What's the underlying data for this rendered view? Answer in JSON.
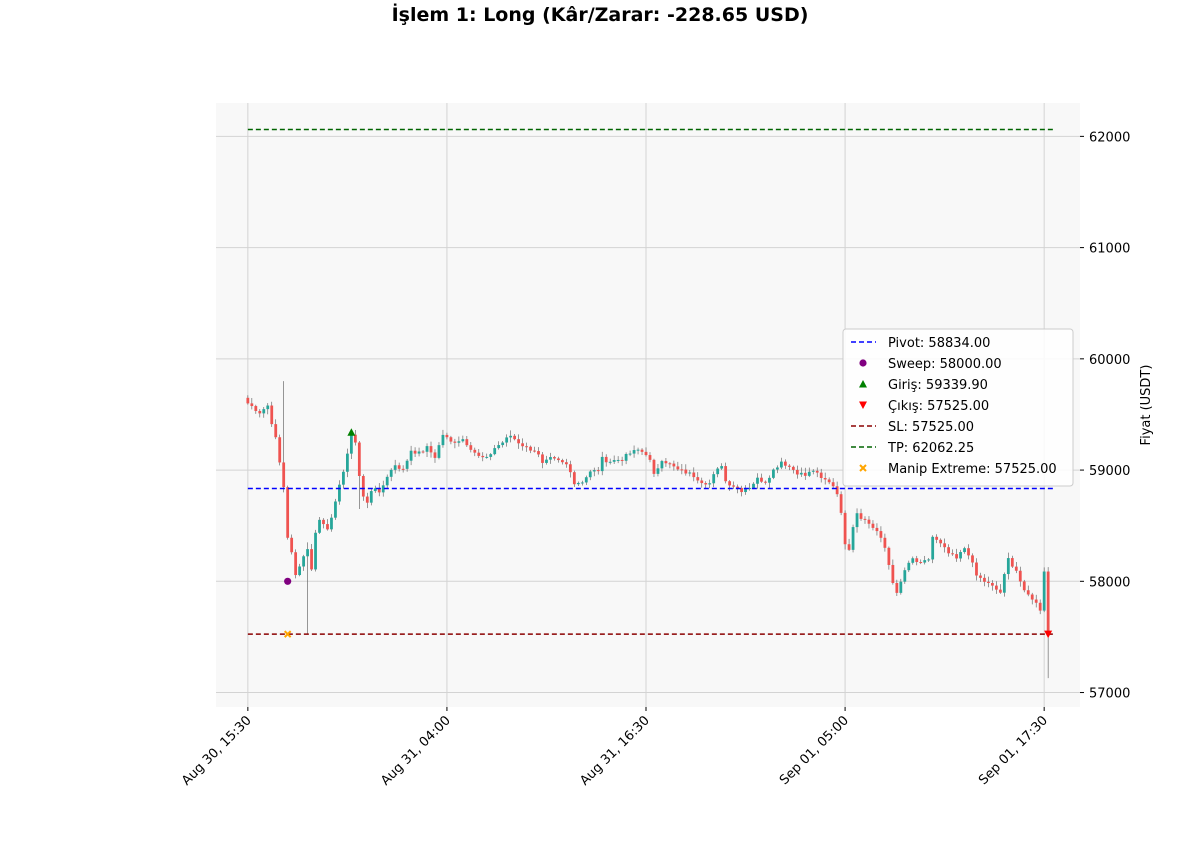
{
  "chart_data": {
    "type": "candlestick",
    "title": "İşlem 1: Long (Kâr/Zarar: -228.65 USD)",
    "ylabel": "Fiyat (USDT)",
    "xlabel": "",
    "ylim": [
      56870,
      62300
    ],
    "yticks": [
      57000,
      58000,
      59000,
      60000,
      61000,
      62000
    ],
    "ytick_labels": [
      "57000",
      "58000",
      "59000",
      "60000",
      "61000",
      "62000"
    ],
    "x_start": "2024-08-30 15:30",
    "x_end": "2024-09-01 17:45",
    "xlim": [
      "2024-08-30 13:30",
      "2024-09-01 19:45"
    ],
    "candle_minutes": 15,
    "xtick_labels": [
      "Aug 30, 15:30",
      "Aug 31, 04:00",
      "Aug 31, 16:30",
      "Sep 01, 05:00",
      "Sep 01, 17:30"
    ],
    "xticks": [
      "2024-08-30 15:30",
      "2024-08-31 04:00",
      "2024-08-31 16:30",
      "2024-09-01 05:00",
      "2024-09-01 17:30"
    ],
    "grid": true,
    "legend_position": "center-right",
    "price_path": [
      [
        0,
        59600
      ],
      [
        3,
        59520
      ],
      [
        5,
        59580
      ],
      [
        7,
        59280
      ],
      [
        9,
        58850
      ],
      [
        10,
        58400
      ],
      [
        11,
        58250
      ],
      [
        12,
        58050
      ],
      [
        13,
        58150
      ],
      [
        15,
        58300
      ],
      [
        16,
        58100
      ],
      [
        17,
        58450
      ],
      [
        18,
        58550
      ],
      [
        20,
        58480
      ],
      [
        22,
        58700
      ],
      [
        24,
        59000
      ],
      [
        26,
        59300
      ],
      [
        27,
        59260
      ],
      [
        28,
        58950
      ],
      [
        29,
        58760
      ],
      [
        30,
        58700
      ],
      [
        31,
        58820
      ],
      [
        32,
        58850
      ],
      [
        33,
        58780
      ],
      [
        35,
        58950
      ],
      [
        37,
        59050
      ],
      [
        39,
        59000
      ],
      [
        41,
        59180
      ],
      [
        43,
        59150
      ],
      [
        45,
        59200
      ],
      [
        47,
        59120
      ],
      [
        49,
        59320
      ],
      [
        51,
        59250
      ],
      [
        54,
        59280
      ],
      [
        56,
        59200
      ],
      [
        58,
        59120
      ],
      [
        60,
        59100
      ],
      [
        62,
        59200
      ],
      [
        64,
        59250
      ],
      [
        66,
        59310
      ],
      [
        68,
        59250
      ],
      [
        70,
        59200
      ],
      [
        72,
        59180
      ],
      [
        73,
        59130
      ],
      [
        74,
        59050
      ],
      [
        76,
        59100
      ],
      [
        78,
        59080
      ],
      [
        80,
        59050
      ],
      [
        81,
        59000
      ],
      [
        82,
        58880
      ],
      [
        84,
        58900
      ],
      [
        86,
        58980
      ],
      [
        88,
        59000
      ],
      [
        89,
        59100
      ],
      [
        91,
        59080
      ],
      [
        94,
        59100
      ],
      [
        96,
        59150
      ],
      [
        98,
        59180
      ],
      [
        100,
        59150
      ],
      [
        101,
        59080
      ],
      [
        102,
        58950
      ],
      [
        104,
        59100
      ],
      [
        106,
        59050
      ],
      [
        108,
        59000
      ],
      [
        110,
        58980
      ],
      [
        112,
        58950
      ],
      [
        114,
        58900
      ],
      [
        116,
        58880
      ],
      [
        117,
        58950
      ],
      [
        119,
        59050
      ],
      [
        120,
        58900
      ],
      [
        122,
        58860
      ],
      [
        124,
        58820
      ],
      [
        126,
        58850
      ],
      [
        128,
        58920
      ],
      [
        130,
        58900
      ],
      [
        132,
        59000
      ],
      [
        134,
        59080
      ],
      [
        136,
        59030
      ],
      [
        138,
        58980
      ],
      [
        140,
        58950
      ],
      [
        142,
        59000
      ],
      [
        144,
        58920
      ],
      [
        146,
        58900
      ],
      [
        147,
        58860
      ],
      [
        148,
        58800
      ],
      [
        149,
        58600
      ],
      [
        150,
        58350
      ],
      [
        151,
        58300
      ],
      [
        152,
        58500
      ],
      [
        153,
        58620
      ],
      [
        154,
        58580
      ],
      [
        156,
        58520
      ],
      [
        158,
        58450
      ],
      [
        160,
        58300
      ],
      [
        161,
        58150
      ],
      [
        162,
        58000
      ],
      [
        163,
        57880
      ],
      [
        165,
        58100
      ],
      [
        167,
        58200
      ],
      [
        169,
        58150
      ],
      [
        171,
        58200
      ],
      [
        172,
        58400
      ],
      [
        174,
        58330
      ],
      [
        176,
        58250
      ],
      [
        178,
        58200
      ],
      [
        180,
        58300
      ],
      [
        181,
        58250
      ],
      [
        183,
        58050
      ],
      [
        185,
        58000
      ],
      [
        187,
        57950
      ],
      [
        189,
        57900
      ],
      [
        191,
        58200
      ],
      [
        193,
        58100
      ],
      [
        195,
        57900
      ],
      [
        197,
        57850
      ],
      [
        199,
        57750
      ],
      [
        200,
        58100
      ],
      [
        201,
        57540
      ],
      [
        202,
        57700
      ],
      [
        203,
        57850
      ],
      [
        205,
        57920
      ],
      [
        207,
        57850
      ]
    ],
    "wick_spikes": [
      [
        9,
        59800,
        58800
      ],
      [
        15,
        58350,
        57530
      ],
      [
        28,
        59200,
        58650
      ],
      [
        201,
        58120,
        57130
      ]
    ],
    "series": [
      {
        "name": "Pivot: 58834.00",
        "kind": "hline",
        "value": 58834.0,
        "style": "dashed",
        "color": "#0000ff"
      },
      {
        "name": "Sweep: 58000.00",
        "kind": "point",
        "x_index": 10,
        "value": 58000.0,
        "marker": "circle",
        "color": "#800080"
      },
      {
        "name": "Giriş: 59339.90",
        "kind": "point",
        "x_index": 26,
        "value": 59339.9,
        "marker": "triangle-up",
        "color": "#008000"
      },
      {
        "name": "Çıkış: 57525.00",
        "kind": "point",
        "x_index": 201,
        "value": 57525.0,
        "marker": "triangle-down",
        "color": "#ff0000"
      },
      {
        "name": "SL: 57525.00",
        "kind": "hline",
        "value": 57525.0,
        "style": "dashed",
        "color": "#8b0000"
      },
      {
        "name": "TP: 62062.25",
        "kind": "hline",
        "value": 62062.25,
        "style": "dashed",
        "color": "#006400"
      },
      {
        "name": "Manip Extreme: 57525.00",
        "kind": "point",
        "x_index": 10,
        "value": 57525.0,
        "marker": "x",
        "color": "#ffa500"
      }
    ]
  }
}
